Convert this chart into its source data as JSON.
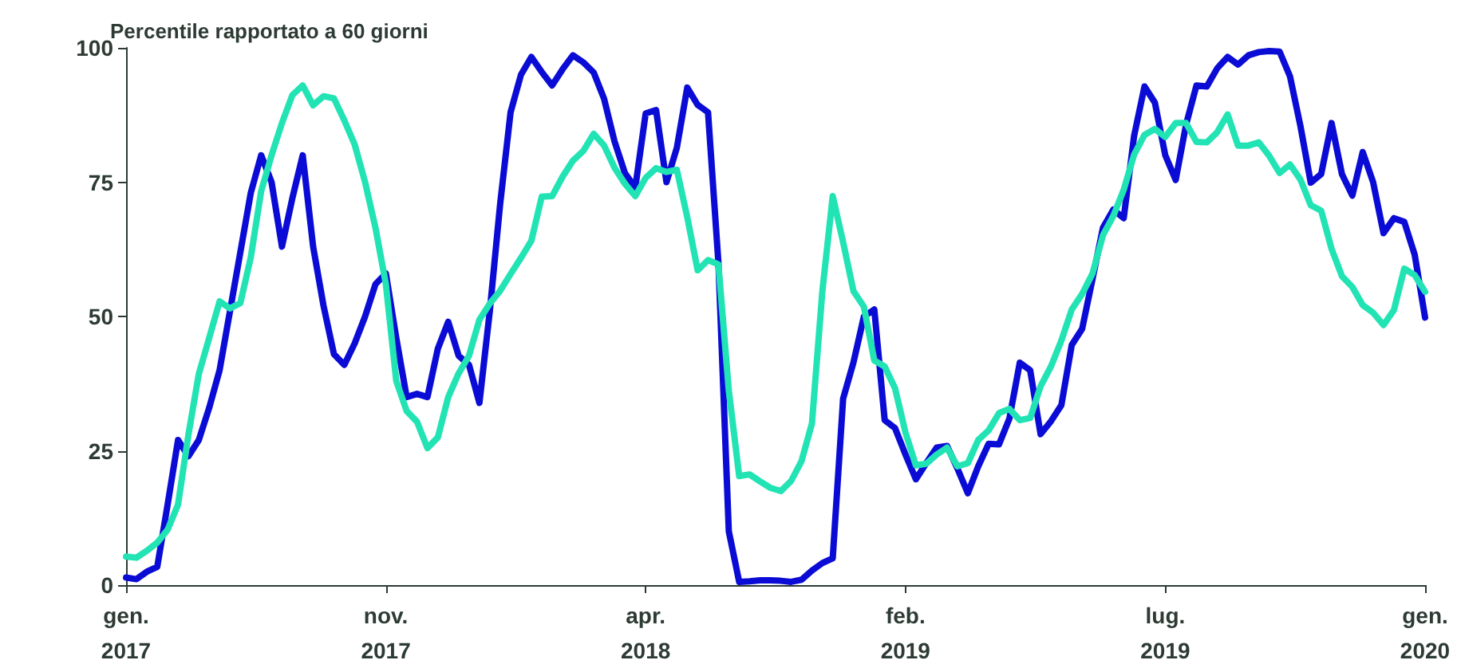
{
  "chart_data": {
    "type": "line",
    "title": "Percentile rapportato a 60 giorni",
    "categories": [
      "gen.\n2017",
      null,
      null,
      null,
      null,
      null,
      null,
      null,
      null,
      null,
      null,
      null,
      null,
      null,
      null,
      null,
      null,
      null,
      null,
      null,
      null,
      null,
      null,
      null,
      null,
      "nov.\n2017",
      null,
      null,
      null,
      null,
      null,
      null,
      null,
      null,
      null,
      null,
      null,
      null,
      null,
      null,
      null,
      null,
      null,
      null,
      null,
      null,
      null,
      null,
      null,
      null,
      "apr.\n2018",
      null,
      null,
      null,
      null,
      null,
      null,
      null,
      null,
      null,
      null,
      null,
      null,
      null,
      null,
      null,
      null,
      null,
      null,
      null,
      null,
      null,
      null,
      null,
      null,
      "feb.\n2019",
      null,
      null,
      null,
      null,
      null,
      null,
      null,
      null,
      null,
      null,
      null,
      null,
      null,
      null,
      null,
      null,
      null,
      null,
      null,
      null,
      null,
      null,
      null,
      null,
      "lug.\n2019",
      null,
      null,
      null,
      null,
      null,
      null,
      null,
      null,
      null,
      null,
      null,
      null,
      null,
      null,
      null,
      null,
      null,
      null,
      null,
      null,
      null,
      null,
      null,
      null,
      "gen.\n2020"
    ],
    "ylim": [
      0,
      100
    ],
    "yticks": [
      0,
      25,
      50,
      75,
      100
    ],
    "grid": false,
    "marker": "none",
    "line_style": "solid",
    "series": [
      {
        "color": "#0b0bd6",
        "values": [
          1.4,
          1.1,
          2.5,
          3.4,
          15,
          27,
          24,
          27,
          33,
          40,
          51,
          62,
          73,
          80,
          75,
          63,
          72,
          80,
          63,
          52,
          43,
          41,
          45,
          50,
          56,
          58,
          46,
          35,
          35.6,
          35,
          44,
          49,
          42.7,
          41,
          33.9,
          51,
          71,
          88,
          95,
          98.3,
          95.5,
          93,
          96,
          98.6,
          97.3,
          95.4,
          90.5,
          82.6,
          76.7,
          74,
          87.8,
          88.4,
          75,
          81.4,
          92.6,
          89.4,
          88,
          60,
          10,
          0.6,
          0.7,
          0.9,
          0.9,
          0.8,
          0.6,
          1,
          2.7,
          4.1,
          5,
          34.7,
          41.5,
          50,
          51.3,
          30.7,
          29.2,
          24.3,
          19.7,
          22.7,
          25.6,
          25.9,
          21.7,
          17.1,
          22.1,
          26.3,
          26.2,
          31,
          41.4,
          40,
          28.1,
          30.5,
          33.5,
          44.7,
          47.7,
          57,
          66.5,
          69.9,
          68.3,
          83.6,
          92.8,
          89.8,
          80,
          75.4,
          85.7,
          93,
          92.8,
          96.2,
          98.3,
          96.9,
          98.6,
          99.2,
          99.4,
          99.3,
          94.7,
          85.5,
          74.9,
          76.5,
          86,
          76.5,
          72.5,
          80.6,
          75,
          65.5,
          68.3,
          67.6,
          61.5,
          49.8
        ]
      },
      {
        "color": "#22e3b4",
        "values": [
          5.3,
          5.1,
          6.4,
          7.9,
          10.3,
          15,
          28,
          39.3,
          46,
          52.8,
          51.5,
          52.5,
          61,
          73.3,
          80,
          86,
          91.2,
          93,
          89.3,
          91,
          90.6,
          86.5,
          82,
          75,
          66.5,
          56,
          38,
          32.4,
          30.4,
          25.5,
          27.5,
          35,
          39.4,
          42.7,
          49.4,
          52.4,
          54.8,
          57.9,
          60.9,
          64.1,
          72.3,
          72.4,
          76,
          79,
          80.8,
          84,
          81.8,
          77.7,
          74.7,
          72.4,
          75.8,
          77.6,
          76.9,
          77.3,
          68.5,
          58.6,
          60.5,
          59.7,
          36.2,
          20.3,
          20.6,
          19.3,
          18.1,
          17.5,
          19.4,
          23.1,
          30.1,
          54.7,
          72.4,
          63.8,
          54.7,
          51.8,
          41.8,
          40.7,
          36.6,
          28.4,
          22.3,
          22.6,
          24.3,
          25.6,
          22.1,
          22.7,
          27,
          28.8,
          32,
          32.8,
          30.7,
          31.1,
          37,
          40.7,
          45.5,
          51.3,
          54.2,
          58,
          65.1,
          68.7,
          73.6,
          80.1,
          83.8,
          84.9,
          83.4,
          86,
          86,
          82.5,
          82.4,
          84.3,
          87.6,
          81.8,
          81.8,
          82.4,
          79.9,
          76.7,
          78.3,
          75.5,
          70.7,
          69.7,
          62.6,
          57.5,
          55.5,
          52.1,
          50.7,
          48.4,
          51.2,
          58.9,
          57.7,
          54.6
        ]
      }
    ]
  }
}
